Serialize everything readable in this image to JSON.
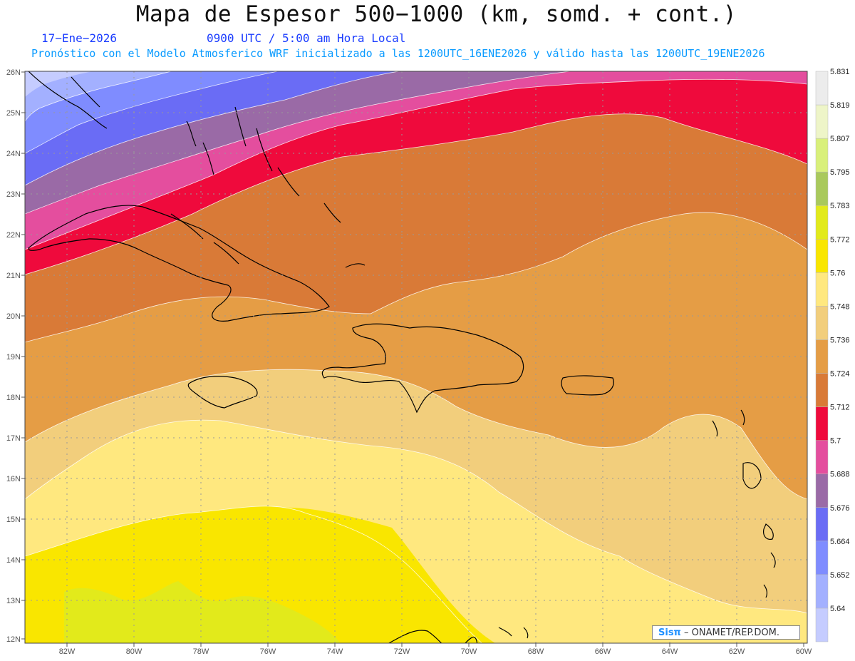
{
  "header": {
    "title": "Mapa de Espesor 500−1000 (km, somd. + cont.)",
    "date": "17−Ene−2026",
    "time": "0900 UTC / 5:00 am Hora Local",
    "forecast": "Pronóstico con el Modelo Atmosferico WRF inicializado a las 1200UTC_16ENE2026 y válido hasta las  1200UTC_19ENE2026"
  },
  "map": {
    "lat_labels": [
      "26N",
      "25N",
      "24N",
      "23N",
      "22N",
      "21N",
      "20N",
      "19N",
      "18N",
      "17N",
      "16N",
      "15N",
      "14N",
      "13N",
      "12N"
    ],
    "lon_labels": [
      "82W",
      "80W",
      "78W",
      "76W",
      "74W",
      "72W",
      "70W",
      "68W",
      "66W",
      "64W",
      "62W",
      "60W"
    ],
    "lat_range": [
      12,
      26
    ],
    "lon_range": [
      -83.2,
      -60
    ]
  },
  "colorbar": {
    "levels": [
      "5.64",
      "5.652",
      "5.664",
      "5.676",
      "5.688",
      "5.7",
      "5.712",
      "5.724",
      "5.736",
      "5.748",
      "5.76",
      "5.772",
      "5.783",
      "5.795",
      "5.807",
      "5.819",
      "5.831"
    ],
    "colors": [
      "#c5ccff",
      "#a3b0ff",
      "#7f8cff",
      "#6a6cf5",
      "#9a6aa6",
      "#e44e9e",
      "#ef0a3c",
      "#d97a37",
      "#e59d45",
      "#f2ce7c",
      "#ffe87f",
      "#f9e600",
      "#e2ea1b",
      "#a9c95c",
      "#d9f07a",
      "#eef5c8",
      "#ececec"
    ]
  },
  "credit": {
    "logo": "Sisπ",
    "text": "– ONAMET/REP.DOM."
  }
}
